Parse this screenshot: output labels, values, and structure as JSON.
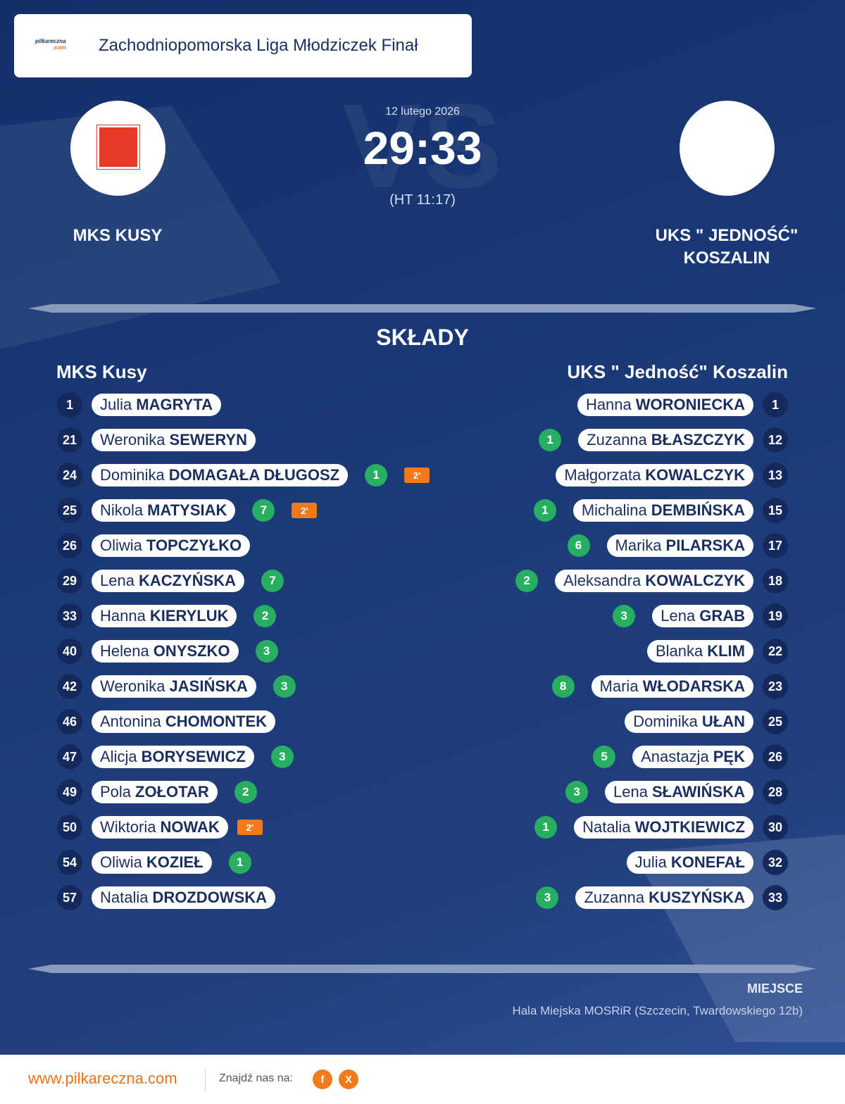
{
  "header": {
    "logo": [
      "pilkareczna",
      ".com"
    ],
    "title": "Zachodniopomorska Liga Młodziczek Finał"
  },
  "match": {
    "date": "12 lutego 2026",
    "watermark": "VS",
    "score": "29:33",
    "halftime": "(HT 11:17)",
    "home_team": "MKS KUSY",
    "away_team": "UKS \" JEDNOŚĆ\" KOSZALIN"
  },
  "lineups": {
    "title": "SKŁADY",
    "home": {
      "name": "MKS Kusy",
      "players": [
        {
          "number": 1,
          "first": "Julia",
          "last": "MAGRYTA"
        },
        {
          "number": 21,
          "first": "Weronika",
          "last": "SEWERYN"
        },
        {
          "number": 24,
          "first": "Dominika",
          "last": "DOMAGAŁA DŁUGOSZ",
          "goals": 1,
          "penalty": "2'"
        },
        {
          "number": 25,
          "first": "Nikola",
          "last": "MATYSIAK",
          "goals": 7,
          "penalty": "2'"
        },
        {
          "number": 26,
          "first": "Oliwia",
          "last": "TOPCZYŁKO"
        },
        {
          "number": 29,
          "first": "Lena",
          "last": "KACZYŃSKA",
          "goals": 7
        },
        {
          "number": 33,
          "first": "Hanna",
          "last": "KIERYLUK",
          "goals": 2
        },
        {
          "number": 40,
          "first": "Helena",
          "last": "ONYSZKO",
          "goals": 3
        },
        {
          "number": 42,
          "first": "Weronika",
          "last": "JASIŃSKA",
          "goals": 3
        },
        {
          "number": 46,
          "first": "Antonina",
          "last": "CHOMONTEK"
        },
        {
          "number": 47,
          "first": "Alicja",
          "last": "BORYSEWICZ",
          "goals": 3
        },
        {
          "number": 49,
          "first": "Pola",
          "last": "ZOŁOTAR",
          "goals": 2
        },
        {
          "number": 50,
          "first": "Wiktoria",
          "last": "NOWAK",
          "penalty": "2'"
        },
        {
          "number": 54,
          "first": "Oliwia",
          "last": "KOZIEŁ",
          "goals": 1
        },
        {
          "number": 57,
          "first": "Natalia",
          "last": "DROZDOWSKA"
        }
      ]
    },
    "away": {
      "name": "UKS \" Jedność\" Koszalin",
      "players": [
        {
          "number": 1,
          "first": "Hanna",
          "last": "WORONIECKA"
        },
        {
          "number": 12,
          "first": "Zuzanna",
          "last": "BŁASZCZYK",
          "goals": 1
        },
        {
          "number": 13,
          "first": "Małgorzata",
          "last": "KOWALCZYK"
        },
        {
          "number": 15,
          "first": "Michalina",
          "last": "DEMBIŃSKA",
          "goals": 1
        },
        {
          "number": 17,
          "first": "Marika",
          "last": "PILARSKA",
          "goals": 6
        },
        {
          "number": 18,
          "first": "Aleksandra",
          "last": "KOWALCZYK",
          "goals": 2
        },
        {
          "number": 19,
          "first": "Lena",
          "last": "GRAB",
          "goals": 3
        },
        {
          "number": 22,
          "first": "Blanka",
          "last": "KLIM"
        },
        {
          "number": 23,
          "first": "Maria",
          "last": "WŁODARSKA",
          "goals": 8
        },
        {
          "number": 25,
          "first": "Dominika",
          "last": "UŁAN"
        },
        {
          "number": 26,
          "first": "Anastazja",
          "last": "PĘK",
          "goals": 5
        },
        {
          "number": 28,
          "first": "Lena",
          "last": "SŁAWIŃSKA",
          "goals": 3
        },
        {
          "number": 30,
          "first": "Natalia",
          "last": "WOJTKIEWICZ",
          "goals": 1
        },
        {
          "number": 32,
          "first": "Julia",
          "last": "KONEFAŁ"
        },
        {
          "number": 33,
          "first": "Zuzanna",
          "last": "KUSZYŃSKA",
          "goals": 3
        }
      ]
    }
  },
  "venue": {
    "label": "MIEJSCE",
    "text": "Hala Miejska MOSRiR (Szczecin, Twardowskiego 12b)"
  },
  "footer": {
    "site": "www.pilkareczna.com",
    "find_us": "Znajdź nas na:",
    "social": [
      "f",
      "X"
    ]
  }
}
